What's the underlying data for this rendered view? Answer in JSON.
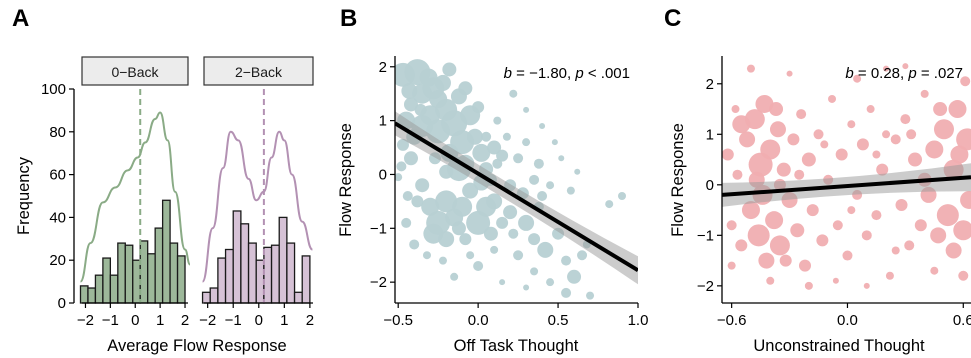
{
  "chart_data": [
    {
      "panel": "A",
      "type": "bar",
      "xlabel": "Average Flow Response",
      "ylabel": "Frequency",
      "ylim": [
        0,
        100
      ],
      "yticks": [
        0,
        20,
        40,
        60,
        80,
        100
      ],
      "xticks": [
        -2,
        -1,
        0,
        1,
        2
      ],
      "xlim": [
        -2.3,
        2.2
      ],
      "bin_width": 0.3,
      "reference_line_x": 0.2,
      "facets": [
        {
          "label": "0−Back",
          "color": "#9db89a",
          "density_color": "#8aab86",
          "bins": [
            -2.2,
            -1.9,
            -1.6,
            -1.3,
            -1.0,
            -0.7,
            -0.4,
            -0.1,
            0.2,
            0.5,
            0.8,
            1.1,
            1.4,
            1.7
          ],
          "values": [
            8,
            7,
            13,
            21,
            13,
            28,
            27,
            20,
            29,
            23,
            35,
            48,
            28,
            22
          ],
          "density": [
            [
              -2.2,
              10
            ],
            [
              -1.8,
              28
            ],
            [
              -1.3,
              47
            ],
            [
              -0.8,
              54
            ],
            [
              -0.3,
              62
            ],
            [
              0.1,
              68
            ],
            [
              0.4,
              75
            ],
            [
              0.8,
              86
            ],
            [
              1.0,
              89
            ],
            [
              1.3,
              76
            ],
            [
              1.6,
              52
            ],
            [
              2.0,
              25
            ],
            [
              2.2,
              18
            ]
          ]
        },
        {
          "label": "2−Back",
          "color": "#d6c2d6",
          "density_color": "#b391b3",
          "bins": [
            -2.2,
            -1.9,
            -1.6,
            -1.3,
            -1.0,
            -0.7,
            -0.4,
            -0.1,
            0.2,
            0.5,
            0.8,
            1.1,
            1.4,
            1.7
          ],
          "values": [
            5,
            7,
            21,
            25,
            43,
            37,
            28,
            20,
            26,
            27,
            40,
            28,
            5,
            22
          ],
          "density": [
            [
              -2.2,
              10
            ],
            [
              -1.8,
              35
            ],
            [
              -1.4,
              63
            ],
            [
              -1.1,
              80
            ],
            [
              -0.8,
              76
            ],
            [
              -0.4,
              58
            ],
            [
              -0.1,
              48
            ],
            [
              0.2,
              52
            ],
            [
              0.5,
              68
            ],
            [
              0.8,
              80
            ],
            [
              1.0,
              76
            ],
            [
              1.3,
              60
            ],
            [
              1.7,
              38
            ],
            [
              2.1,
              25
            ]
          ]
        }
      ]
    },
    {
      "panel": "B",
      "type": "scatter",
      "xlabel": "Off Task Thought",
      "ylabel": "Flow Response",
      "xlim": [
        -0.52,
        1.0
      ],
      "ylim": [
        -2.35,
        2.2
      ],
      "xticks": [
        "-0.5",
        "0.0",
        "0.5",
        "1.0"
      ],
      "yticks": [
        "-2",
        "-1",
        "0",
        "1",
        "2"
      ],
      "annotation": {
        "b": "−1.80",
        "p": "< .001"
      },
      "point_color": "#b7d0d3",
      "regression": {
        "x": [
          -0.52,
          1.0
        ],
        "y": [
          0.95,
          -1.78
        ]
      },
      "points": [
        [
          -0.47,
          1.85,
          12
        ],
        [
          -0.43,
          1.55,
          8
        ],
        [
          -0.38,
          1.9,
          13
        ],
        [
          -0.35,
          1.5,
          10
        ],
        [
          -0.28,
          1.6,
          11
        ],
        [
          -0.31,
          1.8,
          9
        ],
        [
          -0.22,
          1.7,
          8
        ],
        [
          -0.18,
          1.95,
          7
        ],
        [
          -0.45,
          1.0,
          9
        ],
        [
          -0.4,
          0.7,
          8
        ],
        [
          -0.42,
          0.3,
          7
        ],
        [
          -0.48,
          0.15,
          5
        ],
        [
          -0.35,
          0.9,
          11
        ],
        [
          -0.3,
          1.1,
          10
        ],
        [
          -0.25,
          0.8,
          12
        ],
        [
          -0.2,
          1.2,
          11
        ],
        [
          -0.15,
          0.95,
          13
        ],
        [
          -0.1,
          0.6,
          12
        ],
        [
          -0.05,
          1.1,
          10
        ],
        [
          -0.08,
          0.2,
          9
        ],
        [
          -0.12,
          0.1,
          12
        ],
        [
          -0.18,
          0.4,
          9
        ],
        [
          -0.02,
          0.7,
          8
        ],
        [
          0.02,
          0.4,
          9
        ],
        [
          0.05,
          0.1,
          7
        ],
        [
          0.08,
          -0.1,
          6
        ],
        [
          -0.05,
          -0.3,
          8
        ],
        [
          -0.1,
          -0.6,
          10
        ],
        [
          -0.15,
          -0.8,
          9
        ],
        [
          -0.2,
          -0.5,
          11
        ],
        [
          -0.25,
          -0.9,
          12
        ],
        [
          -0.3,
          -0.6,
          9
        ],
        [
          -0.35,
          -0.2,
          7
        ],
        [
          -0.38,
          -0.5,
          6
        ],
        [
          -0.28,
          -1.1,
          10
        ],
        [
          -0.2,
          -1.2,
          8
        ],
        [
          -0.12,
          -1.0,
          7
        ],
        [
          0.0,
          -0.9,
          12
        ],
        [
          0.05,
          -0.6,
          10
        ],
        [
          0.1,
          -0.5,
          8
        ],
        [
          0.15,
          -0.9,
          6
        ],
        [
          0.2,
          -0.7,
          7
        ],
        [
          0.22,
          -1.1,
          5
        ],
        [
          0.3,
          -0.9,
          8
        ],
        [
          0.35,
          -1.2,
          6
        ],
        [
          0.38,
          -0.6,
          5
        ],
        [
          0.42,
          -1.4,
          8
        ],
        [
          0.5,
          -1.1,
          6
        ],
        [
          0.55,
          -1.6,
          5
        ],
        [
          0.6,
          -1.9,
          7
        ],
        [
          0.65,
          -1.5,
          5
        ],
        [
          0.68,
          -1.3,
          4
        ],
        [
          0.55,
          -2.2,
          5
        ],
        [
          0.45,
          -2.0,
          4
        ],
        [
          0.35,
          -1.8,
          4
        ],
        [
          0.25,
          -1.5,
          5
        ],
        [
          0.1,
          -1.4,
          4
        ],
        [
          0.0,
          -1.7,
          5
        ],
        [
          -0.05,
          -1.5,
          4
        ],
        [
          0.15,
          -2.0,
          3
        ],
        [
          0.3,
          -2.1,
          3
        ],
        [
          0.7,
          -2.25,
          4
        ],
        [
          0.82,
          -0.55,
          4
        ],
        [
          0.9,
          -0.4,
          4
        ],
        [
          0.05,
          0.7,
          5
        ],
        [
          0.12,
          1.0,
          4
        ],
        [
          0.18,
          0.7,
          4
        ],
        [
          0.25,
          0.3,
          5
        ],
        [
          0.3,
          0.6,
          4
        ],
        [
          0.38,
          0.2,
          5
        ],
        [
          0.45,
          -0.2,
          4
        ],
        [
          0.52,
          0.3,
          3
        ],
        [
          0.58,
          -0.3,
          4
        ],
        [
          0.62,
          0.05,
          3
        ],
        [
          0.2,
          -0.2,
          6
        ],
        [
          0.28,
          -0.35,
          6
        ],
        [
          0.12,
          0.2,
          5
        ],
        [
          -0.45,
          -0.9,
          5
        ],
        [
          -0.4,
          -1.3,
          5
        ],
        [
          -0.32,
          -1.5,
          4
        ],
        [
          -0.22,
          -1.6,
          4
        ],
        [
          -0.15,
          -1.9,
          4
        ],
        [
          -0.08,
          -1.2,
          6
        ],
        [
          0.08,
          -1.1,
          7
        ],
        [
          0.22,
          1.5,
          4
        ],
        [
          0.3,
          1.2,
          3
        ],
        [
          0.4,
          0.9,
          3
        ],
        [
          0.48,
          0.6,
          3
        ],
        [
          -0.42,
          1.3,
          7
        ],
        [
          -0.36,
          1.2,
          6
        ],
        [
          -0.25,
          1.4,
          9
        ],
        [
          -0.12,
          1.45,
          8
        ],
        [
          -0.08,
          1.6,
          7
        ],
        [
          0.0,
          1.25,
          6
        ],
        [
          0.1,
          0.5,
          7
        ],
        [
          0.15,
          0.35,
          6
        ],
        [
          -0.47,
          0.55,
          6
        ],
        [
          -0.5,
          -0.05,
          4
        ],
        [
          -0.44,
          -0.4,
          5
        ],
        [
          0.02,
          -0.15,
          8
        ],
        [
          -0.2,
          0.05,
          7
        ],
        [
          -0.27,
          0.3,
          6
        ],
        [
          0.35,
          -0.1,
          5
        ],
        [
          0.4,
          -0.4,
          5
        ]
      ]
    },
    {
      "panel": "C",
      "type": "scatter",
      "xlabel": "Unconstrained Thought",
      "ylabel": "Flow Response",
      "xlim": [
        -0.65,
        0.64
      ],
      "ylim": [
        -2.3,
        2.55
      ],
      "xticks": [
        "-0.6",
        "0.0",
        "0.6"
      ],
      "yticks": [
        "-2",
        "-1",
        "0",
        "1",
        "2"
      ],
      "annotation": {
        "b": "0.28",
        "p": ".027"
      },
      "point_color": "#f0aeb1",
      "regression": {
        "x": [
          -0.65,
          0.64
        ],
        "y": [
          -0.2,
          0.15
        ]
      },
      "points": [
        [
          -0.62,
          0.6,
          6
        ],
        [
          -0.6,
          -0.8,
          5
        ],
        [
          -0.58,
          1.5,
          4
        ],
        [
          -0.57,
          0.2,
          5
        ],
        [
          -0.55,
          -1.2,
          6
        ],
        [
          -0.52,
          0.9,
          8
        ],
        [
          -0.5,
          -0.5,
          9
        ],
        [
          -0.48,
          1.3,
          10
        ],
        [
          -0.46,
          -1.0,
          11
        ],
        [
          -0.45,
          0.4,
          12
        ],
        [
          -0.43,
          1.6,
          9
        ],
        [
          -0.42,
          -1.5,
          8
        ],
        [
          -0.4,
          0.7,
          10
        ],
        [
          -0.38,
          -0.7,
          9
        ],
        [
          -0.36,
          1.1,
          8
        ],
        [
          -0.35,
          -1.2,
          10
        ],
        [
          -0.33,
          0.3,
          7
        ],
        [
          -0.3,
          -0.3,
          8
        ],
        [
          -0.28,
          0.9,
          6
        ],
        [
          -0.26,
          -0.9,
          7
        ],
        [
          -0.24,
          1.4,
          5
        ],
        [
          -0.22,
          -1.6,
          6
        ],
        [
          -0.2,
          0.5,
          7
        ],
        [
          -0.18,
          -0.5,
          6
        ],
        [
          -0.15,
          1.0,
          5
        ],
        [
          -0.13,
          -1.1,
          6
        ],
        [
          -0.1,
          0.1,
          5
        ],
        [
          -0.08,
          1.7,
          4
        ],
        [
          -0.05,
          -0.8,
          5
        ],
        [
          -0.03,
          0.6,
          6
        ],
        [
          0.0,
          -1.4,
          5
        ],
        [
          0.02,
          1.2,
          4
        ],
        [
          0.05,
          -0.2,
          5
        ],
        [
          0.08,
          0.8,
          6
        ],
        [
          0.1,
          -1.0,
          5
        ],
        [
          0.12,
          1.5,
          4
        ],
        [
          0.15,
          -0.6,
          5
        ],
        [
          0.18,
          0.3,
          6
        ],
        [
          0.2,
          2.3,
          3
        ],
        [
          0.22,
          -1.8,
          4
        ],
        [
          0.25,
          0.9,
          5
        ],
        [
          0.28,
          -0.4,
          6
        ],
        [
          0.3,
          1.3,
          5
        ],
        [
          0.32,
          -1.2,
          5
        ],
        [
          0.35,
          0.5,
          7
        ],
        [
          0.38,
          -0.8,
          6
        ],
        [
          0.4,
          1.8,
          4
        ],
        [
          0.42,
          -0.2,
          8
        ],
        [
          0.45,
          0.7,
          9
        ],
        [
          0.47,
          -1.0,
          8
        ],
        [
          0.5,
          1.1,
          10
        ],
        [
          0.52,
          -0.6,
          11
        ],
        [
          0.55,
          0.3,
          10
        ],
        [
          0.57,
          1.5,
          9
        ],
        [
          0.6,
          -0.9,
          10
        ],
        [
          0.62,
          0.9,
          11
        ],
        [
          0.63,
          -0.3,
          9
        ],
        [
          0.61,
          2.05,
          5
        ],
        [
          -0.5,
          2.3,
          4
        ],
        [
          -0.3,
          2.2,
          3
        ],
        [
          0.05,
          2.1,
          4
        ],
        [
          0.3,
          2.35,
          3
        ],
        [
          -0.2,
          -2.0,
          4
        ],
        [
          0.1,
          -2.0,
          3
        ],
        [
          -0.4,
          -1.9,
          4
        ],
        [
          0.45,
          -1.7,
          4
        ],
        [
          -0.55,
          1.2,
          9
        ],
        [
          -0.47,
          0.1,
          8
        ],
        [
          -0.37,
          1.5,
          7
        ],
        [
          0.55,
          -1.3,
          8
        ],
        [
          0.48,
          1.5,
          7
        ],
        [
          0.58,
          0.6,
          9
        ],
        [
          -0.44,
          -0.2,
          10
        ],
        [
          -0.32,
          -1.5,
          6
        ],
        [
          0.4,
          0.1,
          7
        ],
        [
          0.33,
          1.0,
          5
        ],
        [
          -0.12,
          0.8,
          4
        ],
        [
          0.02,
          -0.5,
          4
        ],
        [
          0.15,
          0.6,
          4
        ],
        [
          -0.25,
          0.2,
          5
        ],
        [
          0.25,
          -1.3,
          4
        ],
        [
          -0.6,
          -1.6,
          4
        ],
        [
          0.6,
          -1.8,
          5
        ],
        [
          -0.06,
          -1.9,
          3
        ],
        [
          0.2,
          1.0,
          4
        ],
        [
          -0.35,
          0.0,
          6
        ]
      ]
    }
  ]
}
